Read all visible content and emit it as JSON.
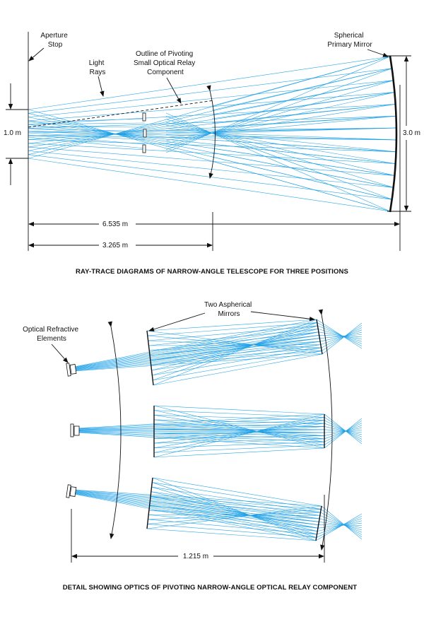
{
  "top": {
    "labels": {
      "aperture_stop": [
        "Aperture",
        "Stop"
      ],
      "light_rays": [
        "Light",
        "Rays"
      ],
      "outline_relay": [
        "Outline of Pivoting",
        "Small Optical Relay",
        "Component"
      ],
      "primary_mirror": [
        "Spherical",
        "Primary Mirror"
      ],
      "dim_left": "1.0 m",
      "dim_right": "3.0 m",
      "dim_total": "6.535 m",
      "dim_half": "3.265 m"
    },
    "caption": "RAY-TRACE DIAGRAMS OF NARROW-ANGLE TELESCOPE FOR THREE POSITIONS"
  },
  "bottom": {
    "labels": {
      "refractive": [
        "Optical Refractive",
        "Elements"
      ],
      "aspherical": [
        "Two Aspherical",
        "Mirrors"
      ],
      "dim_width": "1.215 m"
    },
    "caption": "DETAIL SHOWING OPTICS OF PIVOTING NARROW-ANGLE OPTICAL RELAY COMPONENT"
  },
  "colors": {
    "ray": "#1ea0e6",
    "line": "#111111"
  }
}
